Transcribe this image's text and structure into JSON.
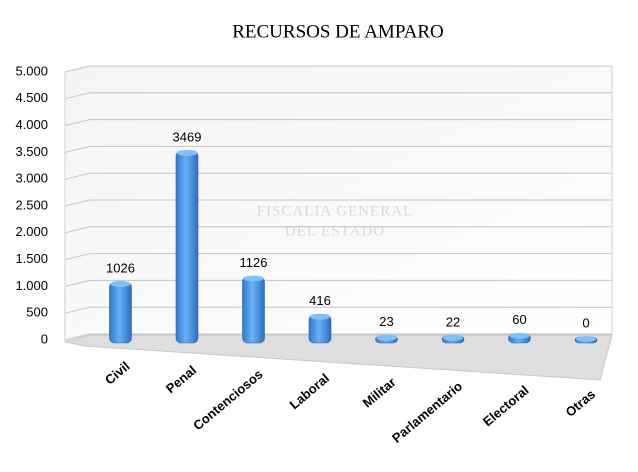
{
  "chart_data": {
    "type": "bar",
    "title": "RECURSOS DE AMPARO",
    "categories": [
      "Civil",
      "Penal",
      "Contenciosos",
      "Laboral",
      "Militar",
      "Parlamentario",
      "Electoral",
      "Otras"
    ],
    "values": [
      1026,
      3469,
      1126,
      416,
      23,
      22,
      60,
      0
    ],
    "color": "#3d8fe3",
    "ylim": [
      0,
      5000
    ],
    "yticks": [
      0,
      500,
      {
        "value": 1000,
        "label": "1.000"
      },
      {
        "value": 1500,
        "label": "1.500"
      },
      {
        "value": 2000,
        "label": "2.000"
      },
      {
        "value": 2500,
        "label": "2.500"
      },
      {
        "value": 3000,
        "label": "3.000"
      },
      {
        "value": 3500,
        "label": "3.500"
      },
      {
        "value": 4000,
        "label": "4.000"
      },
      {
        "value": 4500,
        "label": "4.500"
      },
      {
        "value": 5000,
        "label": "5.000"
      }
    ],
    "grid": true,
    "watermark": [
      "FISCALIA GENERAL",
      "DEL ESTADO"
    ]
  }
}
